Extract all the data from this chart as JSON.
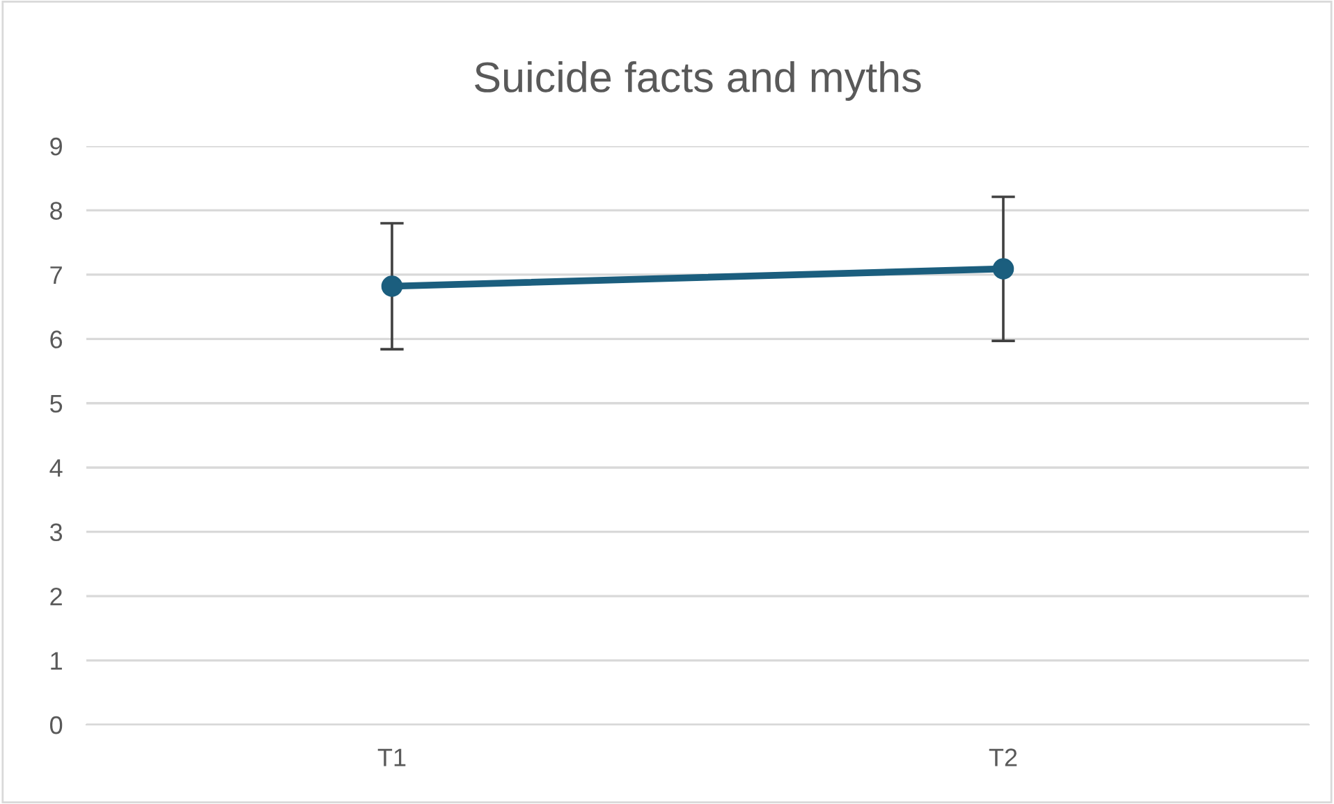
{
  "chart_data": {
    "type": "line",
    "title": "Suicide facts and myths",
    "categories": [
      "T1",
      "T2"
    ],
    "series": [
      {
        "color": "#1b5e7e",
        "values": [
          6.82,
          7.09
        ],
        "errors": [
          0.98,
          1.12
        ]
      }
    ],
    "ylim": [
      0,
      9
    ],
    "yticks": [
      0,
      1,
      2,
      3,
      4,
      5,
      6,
      7,
      8,
      9
    ],
    "grid": "y",
    "marker": "circle",
    "line_style": "solid",
    "legend": false
  }
}
